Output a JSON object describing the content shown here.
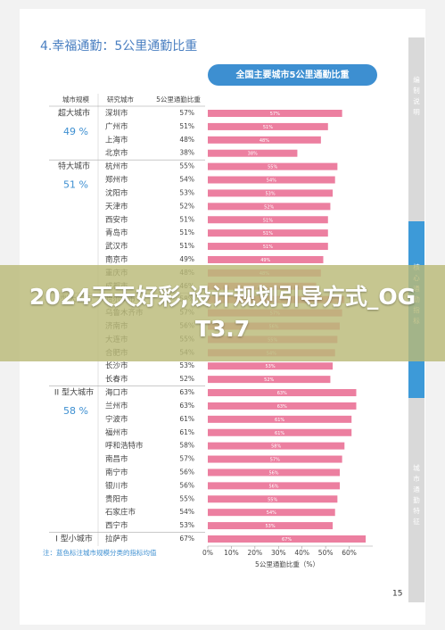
{
  "header": {
    "title": "4.幸福通勤：5公里通勤比重"
  },
  "side_tabs": [
    "编制说明",
    "核心通勤指标",
    "城市通勤特征"
  ],
  "page_number": "15",
  "banner": "2024天天好彩,设计规划引导方式_OGT3.7",
  "chart_data": {
    "type": "bar",
    "title": "全国主要城市5公里通勤比重",
    "column_headers": [
      "城市规模",
      "研究城市",
      "5公里通勤比重"
    ],
    "x_label": "5公里通勤比重（%）",
    "note": "注：蓝色标注城市规模分类的指标均值",
    "color": "#ec7fa0",
    "xlim": [
      0,
      70
    ],
    "xticks": [
      {
        "value": 0,
        "label": "0%"
      },
      {
        "value": 10,
        "label": "10%"
      },
      {
        "value": 20,
        "label": "20%"
      },
      {
        "value": 30,
        "label": "30%"
      },
      {
        "value": 40,
        "label": "40%"
      },
      {
        "value": 50,
        "label": "50%"
      },
      {
        "value": 60,
        "label": "60%"
      }
    ],
    "groups": [
      {
        "name": "超大城市",
        "average": "49 %",
        "categories": [
          "深圳市",
          "广州市",
          "上海市",
          "北京市"
        ],
        "values": [
          57,
          51,
          48,
          38
        ],
        "value_labels": [
          "57%",
          "51%",
          "48%",
          "38%"
        ]
      },
      {
        "name": "特大城市",
        "average": "51 %",
        "categories": [
          "杭州市",
          "郑州市",
          "沈阳市",
          "天津市",
          "西安市",
          "青岛市",
          "武汉市",
          "南京市",
          "重庆市",
          "成都市"
        ],
        "values": [
          55,
          54,
          53,
          52,
          51,
          51,
          51,
          49,
          48,
          46
        ],
        "value_labels": [
          "55%",
          "54%",
          "53%",
          "52%",
          "51%",
          "51%",
          "51%",
          "49%",
          "48%",
          "46%"
        ]
      },
      {
        "name": "I 型大城市",
        "categories": [
          "哈尔滨市",
          "乌鲁木齐市",
          "济南市",
          "大连市",
          "合肥市",
          "长沙市",
          "长春市"
        ],
        "values": [
          58,
          57,
          56,
          55,
          54,
          53,
          52
        ],
        "value_labels": [
          "58%",
          "57%",
          "56%",
          "55%",
          "54%",
          "53%",
          "52%"
        ]
      },
      {
        "name": "II 型大城市",
        "average": "58 %",
        "categories": [
          "海口市",
          "兰州市",
          "宁波市",
          "福州市",
          "呼和浩特市",
          "南昌市",
          "南宁市",
          "银川市",
          "贵阳市",
          "石家庄市",
          "西宁市"
        ],
        "values": [
          63,
          63,
          61,
          61,
          58,
          57,
          56,
          56,
          55,
          54,
          53
        ],
        "value_labels": [
          "63%",
          "63%",
          "61%",
          "61%",
          "58%",
          "57%",
          "56%",
          "56%",
          "55%",
          "54%",
          "53%"
        ]
      },
      {
        "name": "I 型小城市",
        "categories": [
          "拉萨市"
        ],
        "values": [
          67
        ],
        "value_labels": [
          "67%"
        ]
      }
    ]
  }
}
